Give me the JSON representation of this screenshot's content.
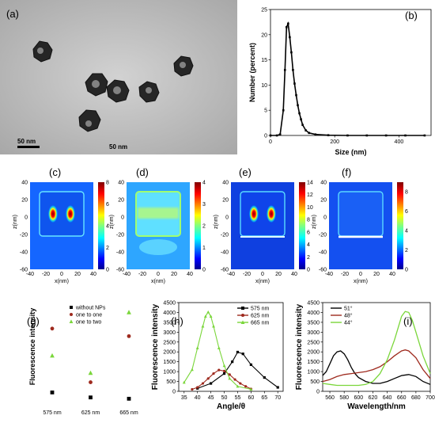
{
  "panels": {
    "a": {
      "label": "(a)",
      "scalebar_text": "50 nm",
      "caption_text": "50 nm"
    },
    "b": {
      "label": "(b)"
    },
    "c": {
      "label": "(c)"
    },
    "d": {
      "label": "(d)"
    },
    "e": {
      "label": "(e)"
    },
    "f": {
      "label": "(f)"
    },
    "g": {
      "label": "(g)"
    },
    "h": {
      "label": "(h)"
    },
    "i": {
      "label": "(i)"
    }
  },
  "colors": {
    "jet": [
      "#00008f",
      "#0000ff",
      "#0080ff",
      "#00ffff",
      "#80ff80",
      "#ffff00",
      "#ff8000",
      "#ff0000",
      "#800000"
    ],
    "black": "#000000",
    "brown": "#9e2a1e",
    "green": "#7ad63a",
    "green_light": "#9be25a"
  },
  "chart_data": [
    {
      "id": "b",
      "type": "line",
      "xlabel": "Size (nm)",
      "ylabel": "Number (percent)",
      "xlim": [
        0,
        500
      ],
      "ylim": [
        0,
        25
      ],
      "xticks": [
        0,
        200,
        400
      ],
      "yticks": [
        0,
        5,
        10,
        15,
        20,
        25
      ],
      "series": [
        {
          "x": [
            0,
            20,
            30,
            40,
            45,
            50,
            55,
            60,
            65,
            70,
            75,
            80,
            85,
            90,
            95,
            100,
            110,
            120,
            140,
            180,
            240,
            300,
            360,
            420,
            480
          ],
          "y": [
            0,
            0,
            0.2,
            5,
            13,
            21.5,
            22.2,
            19.5,
            16.5,
            13,
            10.3,
            8,
            6,
            4.4,
            3.2,
            2.1,
            1,
            0.5,
            0.2,
            0.05,
            0,
            0,
            0,
            0,
            0
          ]
        }
      ]
    },
    {
      "id": "c",
      "type": "heatmap",
      "xlabel": "x(nm)",
      "ylabel": "z(nm)",
      "xlim": [
        -40,
        40
      ],
      "ylim": [
        -60,
        40
      ],
      "xticks": [
        -40,
        -20,
        0,
        20,
        40
      ],
      "yticks": [
        -60,
        -40,
        -20,
        0,
        20,
        40
      ],
      "colorbar_ticks": [
        0,
        2,
        4,
        6,
        8
      ],
      "colorbar_range": [
        0,
        8
      ]
    },
    {
      "id": "d",
      "type": "heatmap",
      "xlabel": "x(nm)",
      "ylabel": "z(nm)",
      "xlim": [
        -40,
        40
      ],
      "ylim": [
        -60,
        40
      ],
      "xticks": [
        -40,
        -20,
        0,
        20,
        40
      ],
      "yticks": [
        -60,
        -40,
        -20,
        0,
        20,
        40
      ],
      "colorbar_ticks": [
        0,
        1,
        2,
        3,
        4
      ],
      "colorbar_range": [
        0,
        4
      ]
    },
    {
      "id": "e",
      "type": "heatmap",
      "xlabel": "x(nm)",
      "ylabel": "z(nm)",
      "xlim": [
        -40,
        40
      ],
      "ylim": [
        -60,
        40
      ],
      "xticks": [
        -40,
        -20,
        0,
        20,
        40
      ],
      "yticks": [
        -60,
        -40,
        -20,
        0,
        20,
        40
      ],
      "colorbar_ticks": [
        0,
        2,
        4,
        6,
        8,
        10,
        12,
        14
      ],
      "colorbar_range": [
        0,
        14
      ]
    },
    {
      "id": "f",
      "type": "heatmap",
      "xlabel": "x(nm)",
      "ylabel": "z(nm)",
      "xlim": [
        -40,
        40
      ],
      "ylim": [
        -60,
        40
      ],
      "xticks": [
        -40,
        -20,
        0,
        20,
        40
      ],
      "yticks": [
        -60,
        -40,
        -20,
        0,
        20,
        40
      ],
      "colorbar_ticks": [
        0,
        2,
        4,
        6,
        8
      ],
      "colorbar_range": [
        0,
        9
      ]
    },
    {
      "id": "g",
      "type": "scatter",
      "ylabel": "Fluorescence intensity",
      "categories": [
        "575 nm",
        "625 nm",
        "665 nm"
      ],
      "ylim": [
        0,
        4500
      ],
      "yticks": [
        0,
        500,
        1000,
        1500,
        2000,
        2500,
        3000,
        3500,
        4000,
        4500
      ],
      "legend_position": "top-right",
      "series": [
        {
          "name": "without NPs",
          "color": "#000000",
          "marker": "square",
          "values": [
            350,
            120,
            60
          ]
        },
        {
          "name": "one to one",
          "color": "#9e2a1e",
          "marker": "circle",
          "values": [
            3300,
            820,
            2950
          ]
        },
        {
          "name": "one to two",
          "color": "#7ad63a",
          "marker": "triangle",
          "values": [
            2050,
            1250,
            4050
          ]
        }
      ]
    },
    {
      "id": "h",
      "type": "line",
      "xlabel": "Angle/θ",
      "ylabel": "Fluorescence intensity",
      "xlim": [
        33,
        72
      ],
      "ylim": [
        0,
        4500
      ],
      "xticks": [
        35,
        40,
        45,
        50,
        55,
        60,
        65,
        70
      ],
      "yticks": [
        0,
        500,
        1000,
        1500,
        2000,
        2500,
        3000,
        3500,
        4000,
        4500
      ],
      "legend_position": "top-right",
      "series": [
        {
          "name": "575 nm",
          "color": "#000000",
          "marker": "square",
          "x": [
            40,
            45,
            50,
            53,
            55,
            57,
            60,
            65,
            70
          ],
          "y": [
            150,
            400,
            900,
            1500,
            1990,
            1900,
            1350,
            700,
            200
          ]
        },
        {
          "name": "625 nm",
          "color": "#9e2a1e",
          "marker": "circle",
          "x": [
            38,
            40,
            42,
            44,
            46,
            48,
            50,
            52,
            54,
            56,
            58,
            60
          ],
          "y": [
            100,
            200,
            400,
            650,
            900,
            1080,
            1030,
            850,
            600,
            400,
            250,
            120
          ]
        },
        {
          "name": "665 nm",
          "color": "#7ad63a",
          "marker": "triangle",
          "x": [
            35,
            38,
            40,
            42,
            43,
            44,
            45,
            46,
            48,
            50,
            52,
            55,
            60
          ],
          "y": [
            450,
            1100,
            2200,
            3300,
            3800,
            4020,
            3800,
            3300,
            2200,
            1300,
            650,
            250,
            100
          ]
        }
      ]
    },
    {
      "id": "i",
      "type": "line",
      "xlabel": "Wavelength/nm",
      "ylabel": "Fluorescence intensity",
      "xlim": [
        550,
        700
      ],
      "ylim": [
        0,
        4500
      ],
      "xticks": [
        560,
        580,
        600,
        620,
        640,
        660,
        680,
        700
      ],
      "yticks": [
        0,
        500,
        1000,
        1500,
        2000,
        2500,
        3000,
        3500,
        4000,
        4500
      ],
      "legend_position": "top-left",
      "series": [
        {
          "name": "51°",
          "color": "#000000",
          "x": [
            550,
            555,
            560,
            565,
            570,
            575,
            580,
            585,
            590,
            595,
            600,
            610,
            620,
            630,
            640,
            650,
            660,
            670,
            680,
            690,
            700
          ],
          "y": [
            800,
            1000,
            1400,
            1800,
            2000,
            2050,
            1900,
            1600,
            1200,
            900,
            700,
            500,
            400,
            400,
            500,
            650,
            800,
            850,
            750,
            500,
            350
          ]
        },
        {
          "name": "48°",
          "color": "#9e2a1e",
          "x": [
            550,
            560,
            570,
            580,
            590,
            600,
            610,
            620,
            630,
            640,
            650,
            660,
            665,
            670,
            680,
            690,
            700
          ],
          "y": [
            500,
            600,
            750,
            850,
            900,
            950,
            1000,
            1100,
            1250,
            1500,
            1800,
            2050,
            2100,
            2050,
            1700,
            1100,
            650
          ]
        },
        {
          "name": "44°",
          "color": "#7ad63a",
          "x": [
            550,
            560,
            570,
            580,
            590,
            600,
            610,
            620,
            630,
            640,
            650,
            655,
            660,
            665,
            670,
            675,
            680,
            690,
            700
          ],
          "y": [
            400,
            350,
            300,
            300,
            300,
            300,
            350,
            500,
            900,
            1600,
            2600,
            3200,
            3800,
            4050,
            4000,
            3600,
            3000,
            1800,
            900
          ]
        }
      ]
    }
  ]
}
